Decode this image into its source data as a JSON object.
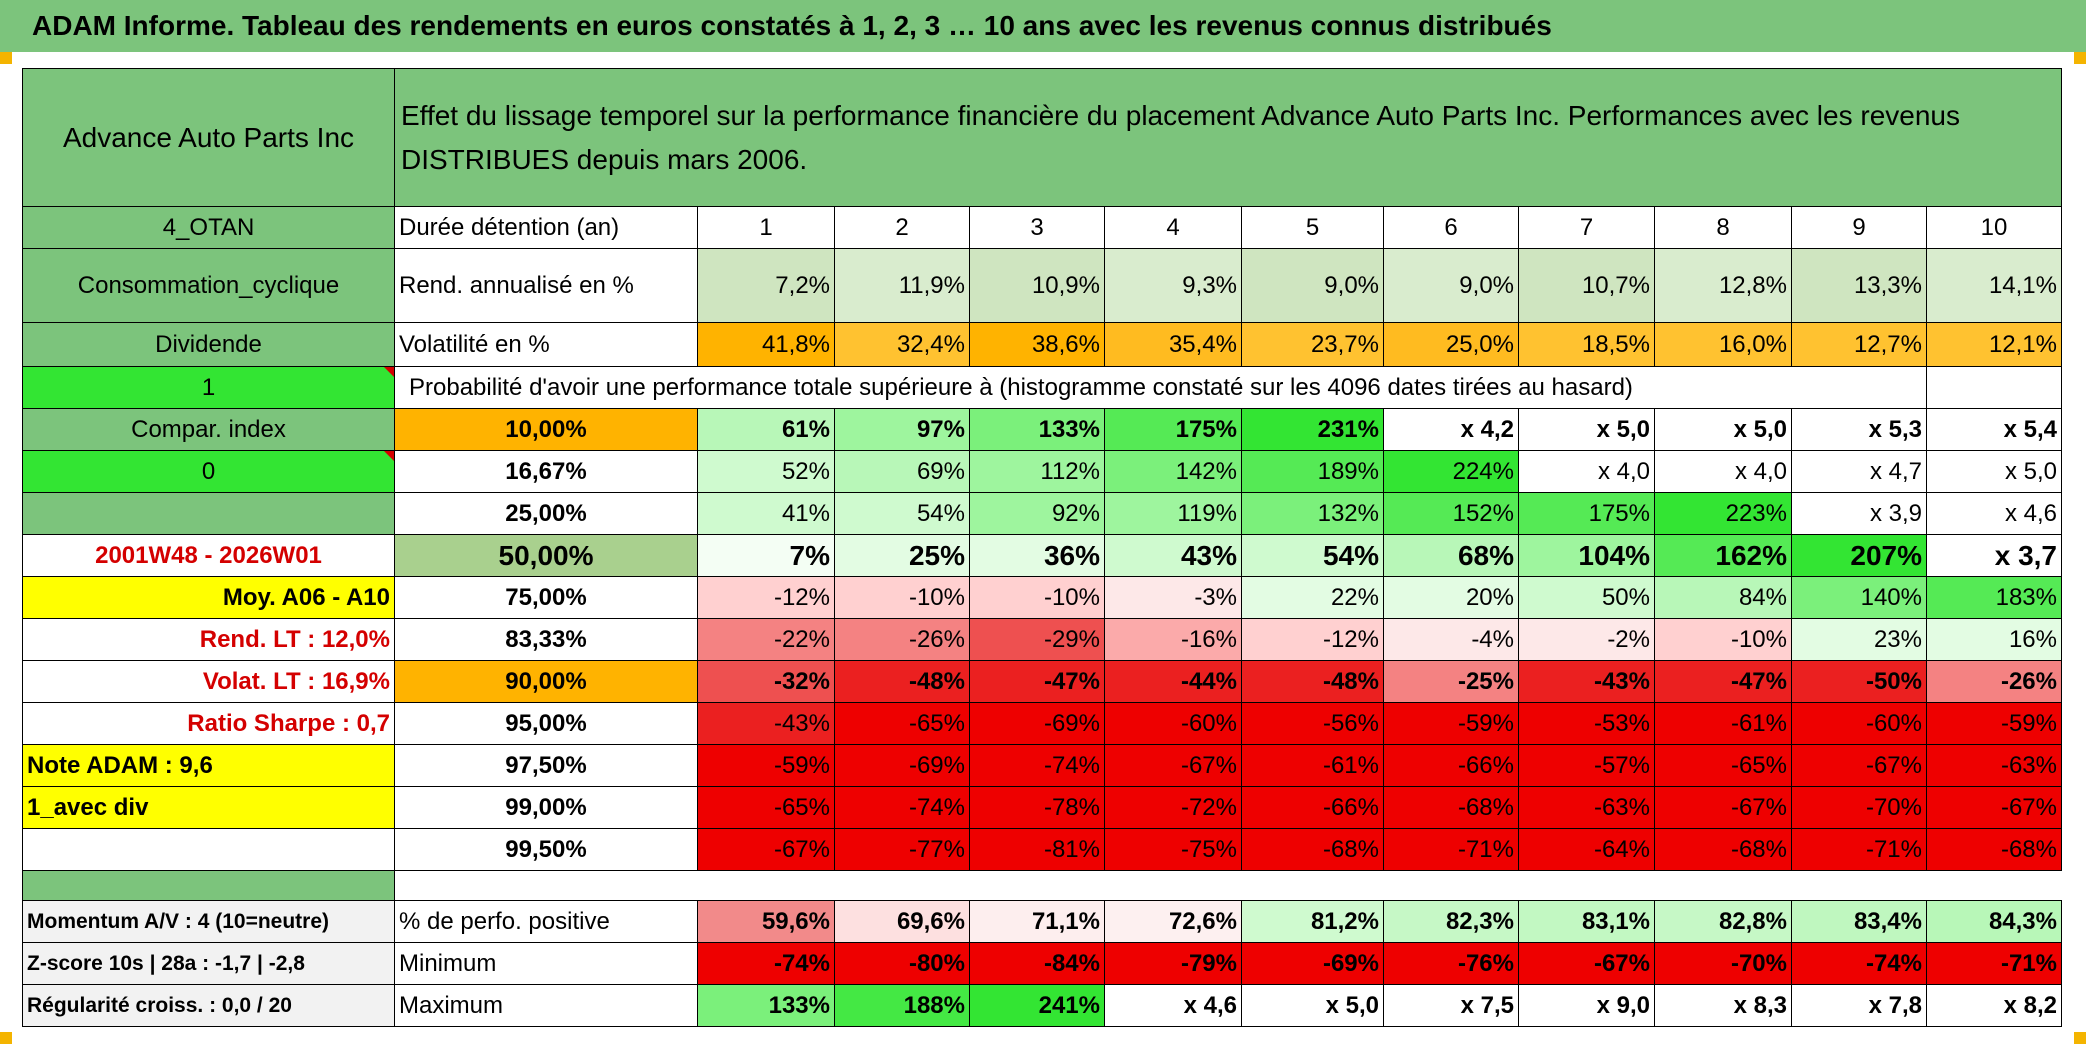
{
  "title": "ADAM Informe. Tableau des rendements en euros constatés à 1, 2, 3 … 10 ans avec les revenus connus distribués",
  "header": {
    "name": "Advance Auto Parts Inc",
    "desc_line1": "Effet du lissage temporel sur la performance financière du placement Advance Auto Parts Inc. Performances avec les revenus",
    "desc_line2": "DISTRIBUES depuis mars 2006."
  },
  "durations": {
    "label": "Durée détention (an)",
    "values": [
      "1",
      "2",
      "3",
      "4",
      "5",
      "6",
      "7",
      "8",
      "9",
      "10"
    ]
  },
  "rend": {
    "label": "Rend. annualisé en %",
    "values": [
      "7,2%",
      "11,9%",
      "10,9%",
      "9,3%",
      "9,0%",
      "9,0%",
      "10,7%",
      "12,8%",
      "13,3%",
      "14,1%"
    ]
  },
  "vol": {
    "label": "Volatilité en %",
    "values": [
      "41,8%",
      "32,4%",
      "38,6%",
      "35,4%",
      "23,7%",
      "25,0%",
      "18,5%",
      "16,0%",
      "12,7%",
      "12,1%"
    ]
  },
  "prob_text": "Probabilité d'avoir une performance totale supérieure à (histogramme constaté sur les 4096 dates tirées au hasard)",
  "left_col": [
    "4_OTAN",
    "Consommation_cyclique",
    "Dividende",
    "1",
    "Compar. index",
    "0",
    "",
    "2001W48 - 2026W01",
    "Moy. A06 - A10",
    "Rend. LT :    12,0%",
    "Volat. LT :    16,9%",
    "Ratio Sharpe :    0,7",
    "Note ADAM : 9,6",
    "1_avec div",
    ""
  ],
  "percentiles": [
    {
      "label": "10,00%",
      "values": [
        "61%",
        "97%",
        "133%",
        "175%",
        "231%",
        "x 4,2",
        "x 5,0",
        "x 5,0",
        "x 5,3",
        "x 5,4"
      ]
    },
    {
      "label": "16,67%",
      "values": [
        "52%",
        "69%",
        "112%",
        "142%",
        "189%",
        "224%",
        "x 4,0",
        "x 4,0",
        "x 4,7",
        "x 5,0"
      ]
    },
    {
      "label": "25,00%",
      "values": [
        "41%",
        "54%",
        "92%",
        "119%",
        "132%",
        "152%",
        "175%",
        "223%",
        "x 3,9",
        "x 4,6"
      ]
    },
    {
      "label": "50,00%",
      "values": [
        "7%",
        "25%",
        "36%",
        "43%",
        "54%",
        "68%",
        "104%",
        "162%",
        "207%",
        "x 3,7"
      ]
    },
    {
      "label": "75,00%",
      "values": [
        "-12%",
        "-10%",
        "-10%",
        "-3%",
        "22%",
        "20%",
        "50%",
        "84%",
        "140%",
        "183%"
      ]
    },
    {
      "label": "83,33%",
      "values": [
        "-22%",
        "-26%",
        "-29%",
        "-16%",
        "-12%",
        "-4%",
        "-2%",
        "-10%",
        "23%",
        "16%"
      ]
    },
    {
      "label": "90,00%",
      "values": [
        "-32%",
        "-48%",
        "-47%",
        "-44%",
        "-48%",
        "-25%",
        "-43%",
        "-47%",
        "-50%",
        "-26%"
      ]
    },
    {
      "label": "95,00%",
      "values": [
        "-43%",
        "-65%",
        "-69%",
        "-60%",
        "-56%",
        "-59%",
        "-53%",
        "-61%",
        "-60%",
        "-59%"
      ]
    },
    {
      "label": "97,50%",
      "values": [
        "-59%",
        "-69%",
        "-74%",
        "-67%",
        "-61%",
        "-66%",
        "-57%",
        "-65%",
        "-67%",
        "-63%"
      ]
    },
    {
      "label": "99,00%",
      "values": [
        "-65%",
        "-74%",
        "-78%",
        "-72%",
        "-66%",
        "-68%",
        "-63%",
        "-67%",
        "-70%",
        "-67%"
      ]
    },
    {
      "label": "99,50%",
      "values": [
        "-67%",
        "-77%",
        "-81%",
        "-75%",
        "-68%",
        "-71%",
        "-64%",
        "-68%",
        "-71%",
        "-68%"
      ]
    }
  ],
  "bottom": [
    {
      "left": "Momentum A/V : 4 (10=neutre)",
      "label": "% de perfo. positive",
      "values": [
        "59,6%",
        "69,6%",
        "71,1%",
        "72,6%",
        "81,2%",
        "82,3%",
        "83,1%",
        "82,8%",
        "83,4%",
        "84,3%"
      ]
    },
    {
      "left": "Z-score 10s | 28a : -1,7 | -2,8",
      "label": "Minimum",
      "values": [
        "-74%",
        "-80%",
        "-84%",
        "-79%",
        "-69%",
        "-76%",
        "-67%",
        "-70%",
        "-74%",
        "-71%"
      ]
    },
    {
      "left": "Régularité croiss. : 0,0 / 20",
      "label": "Maximum",
      "values": [
        "133%",
        "188%",
        "241%",
        "x 4,6",
        "x 5,0",
        "x 7,5",
        "x 9,0",
        "x 8,3",
        "x 7,8",
        "x 8,2"
      ]
    }
  ],
  "colors": {
    "header_green": "#7cc47c",
    "bright_green": "#33e533",
    "orange": "#ffb300",
    "yellow": "#ffff00",
    "red": "#ee0000",
    "pale_grey": "#f2f2f2"
  }
}
